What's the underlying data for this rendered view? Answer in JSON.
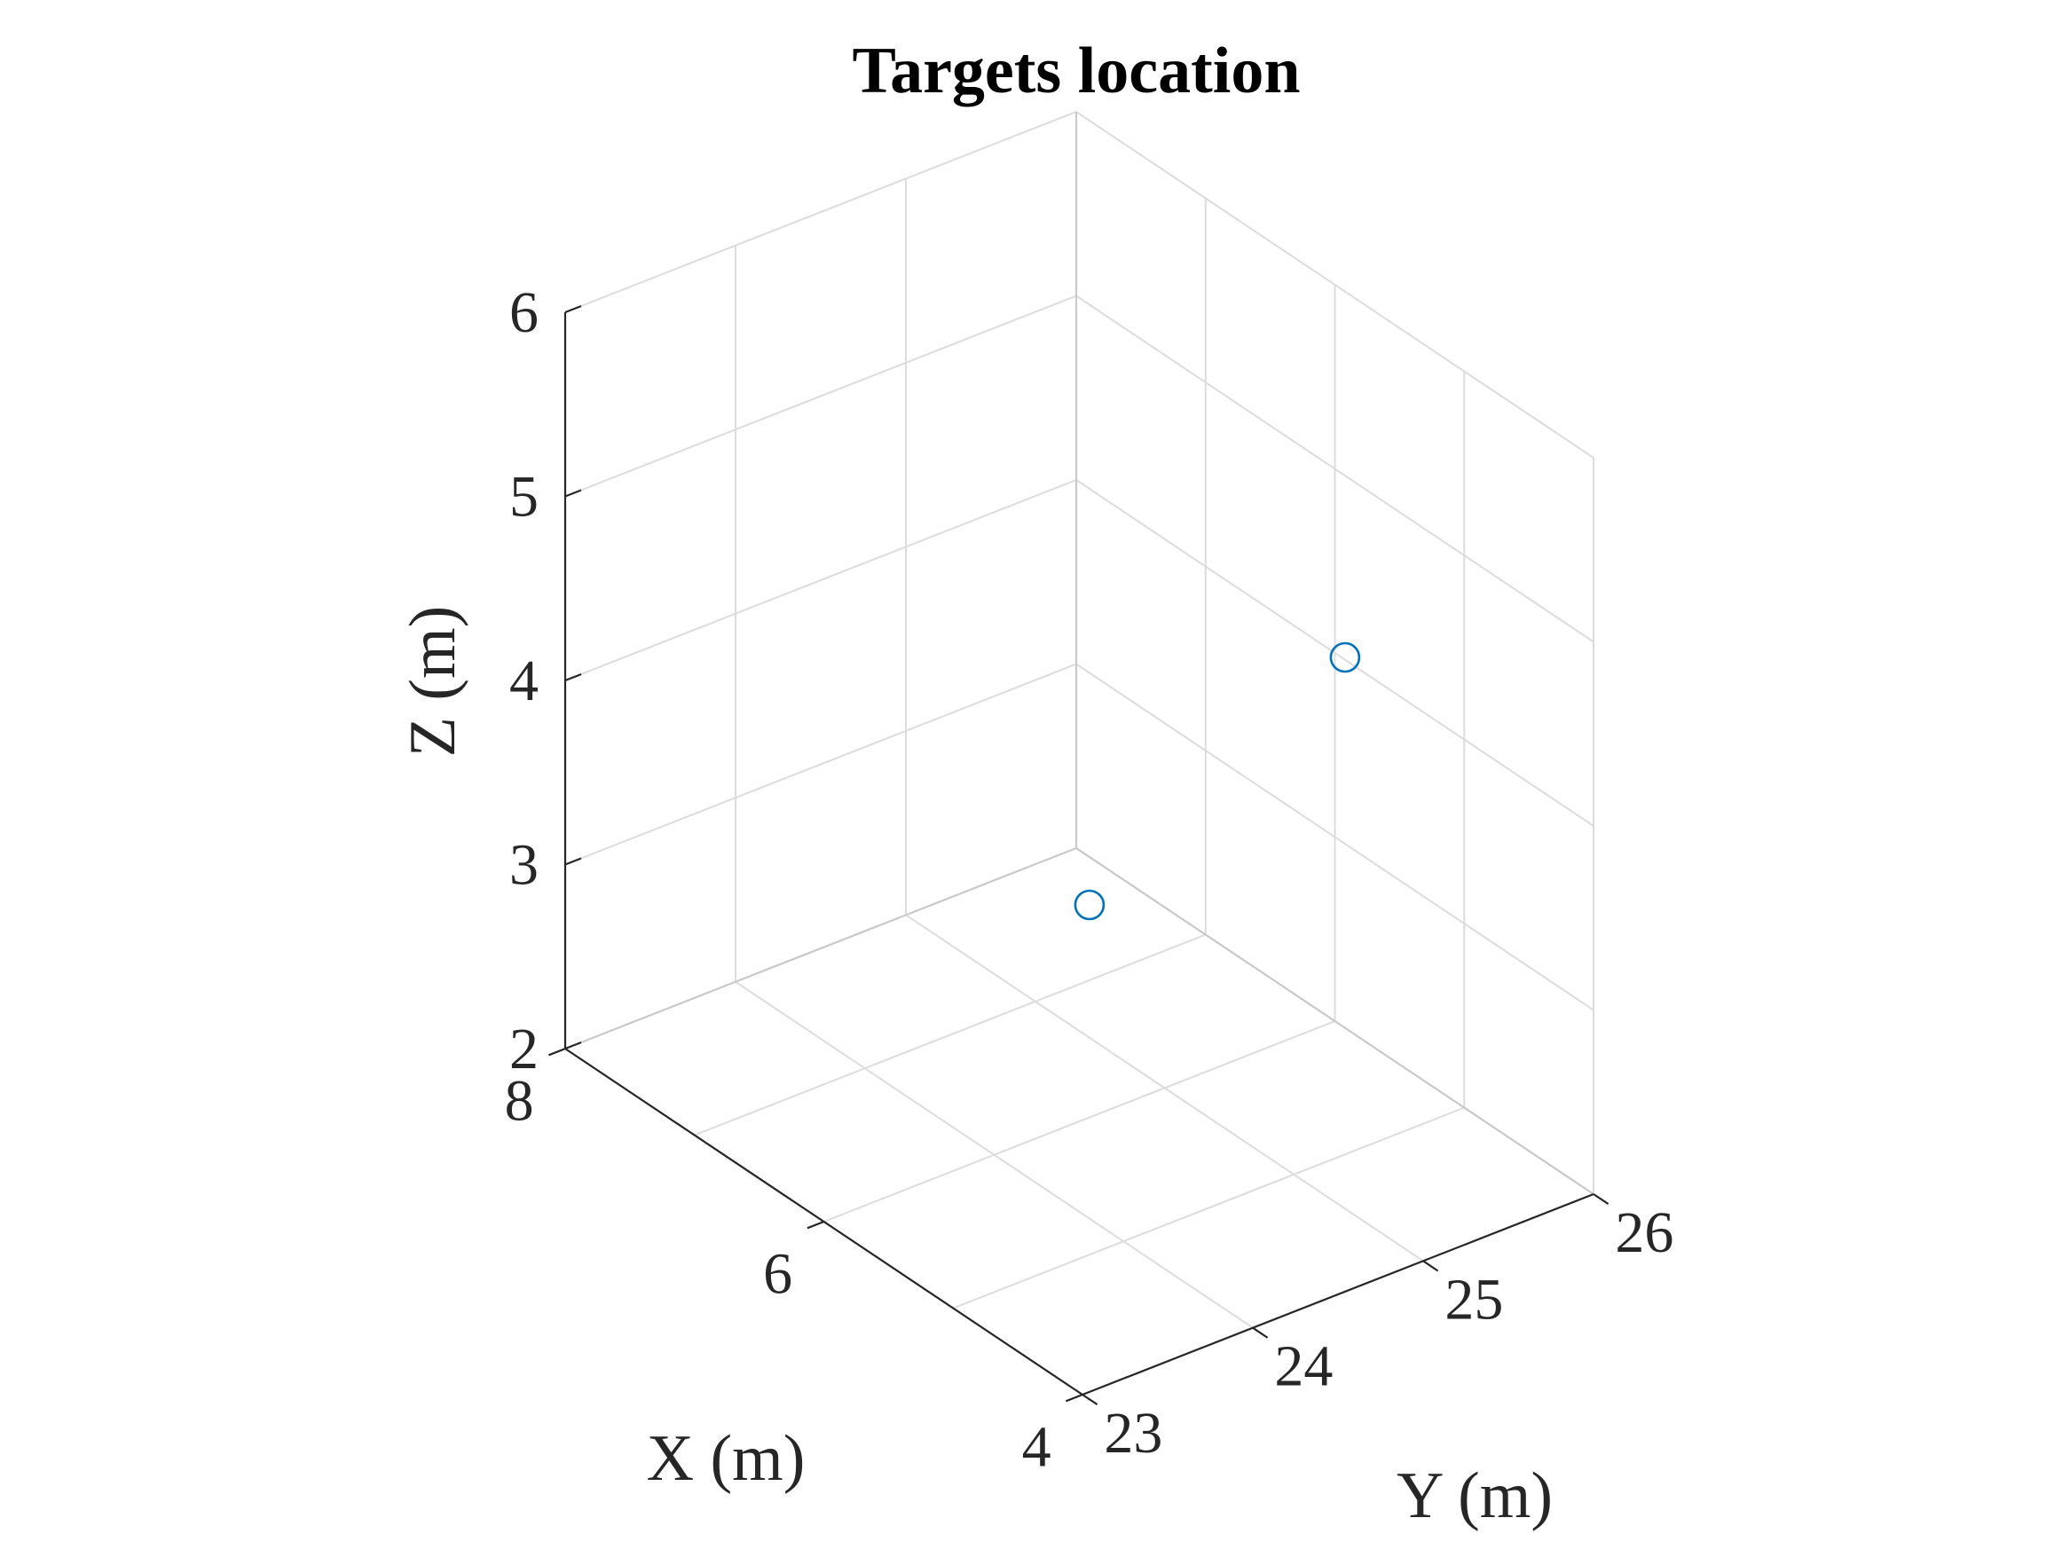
{
  "chart_data": {
    "type": "scatter",
    "title": "Targets location",
    "xlabel": "X (m)",
    "ylabel": "Y (m)",
    "zlabel": "Z (m)",
    "xlim": [
      4,
      8
    ],
    "ylim": [
      23,
      26
    ],
    "zlim": [
      2,
      6
    ],
    "xticks": [
      4,
      6,
      8
    ],
    "yticks": [
      23,
      24,
      25,
      26
    ],
    "zticks": [
      2,
      3,
      4,
      5,
      6
    ],
    "grid": true,
    "view": "3d",
    "marker": "circle",
    "marker_color": "#0072BD",
    "series": [
      {
        "points": [
          {
            "x": 5.0,
            "y": 23.8,
            "z": 3.9
          },
          {
            "x": 5.0,
            "y": 25.3,
            "z": 4.7
          }
        ]
      }
    ]
  }
}
